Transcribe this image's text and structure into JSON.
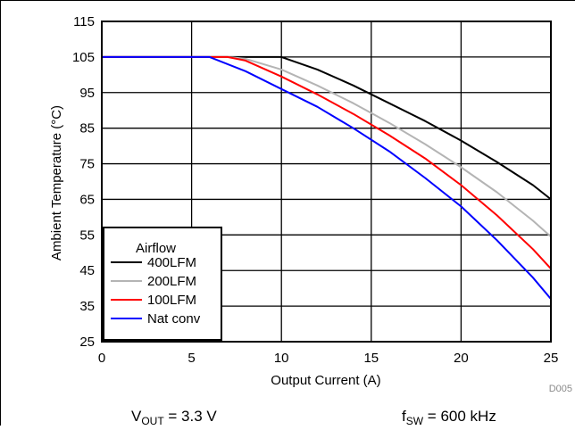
{
  "chart_data": {
    "type": "line",
    "title": "",
    "xlabel": "Output Current (A)",
    "ylabel": "Ambient Temperature (°C)",
    "xlim": [
      0,
      25
    ],
    "ylim": [
      25,
      115
    ],
    "xticks": [
      0,
      5,
      10,
      15,
      20,
      25
    ],
    "yticks": [
      25,
      35,
      45,
      55,
      65,
      75,
      85,
      95,
      105,
      115
    ],
    "grid": true,
    "legend": {
      "title": "Airflow",
      "placement": "bottom-left"
    },
    "series": [
      {
        "name": "400LFM",
        "color": "#000000",
        "x": [
          0,
          6,
          8,
          10,
          12,
          14,
          16,
          18,
          20,
          22,
          24,
          25
        ],
        "y": [
          105,
          105,
          105,
          105,
          101.5,
          97,
          92,
          87,
          81.5,
          75.5,
          69,
          65
        ]
      },
      {
        "name": "200LFM",
        "color": "#b4b4b4",
        "x": [
          0,
          6,
          7,
          8,
          10,
          12,
          14,
          16,
          18,
          20,
          22,
          24,
          25
        ],
        "y": [
          105,
          105,
          105,
          104.5,
          101.5,
          97,
          92,
          86.5,
          80.5,
          74,
          67,
          59,
          54.5
        ]
      },
      {
        "name": "100LFM",
        "color": "#ff0000",
        "x": [
          0,
          6,
          7,
          8,
          10,
          12,
          14,
          16,
          18,
          20,
          22,
          24,
          25
        ],
        "y": [
          105,
          105,
          105,
          104,
          99.5,
          94.5,
          89,
          83,
          76.5,
          69,
          60.5,
          51,
          45.5
        ]
      },
      {
        "name": "Nat conv",
        "color": "#0000ff",
        "x": [
          0,
          6,
          8,
          10,
          12,
          14,
          16,
          18,
          20,
          22,
          24,
          25
        ],
        "y": [
          105,
          105,
          101,
          96,
          91,
          85,
          78.5,
          71,
          63,
          53.5,
          43,
          37
        ]
      }
    ]
  },
  "captions": {
    "vout_symbol": "V",
    "vout_sub": "OUT",
    "vout_rest": " = 3.3 V",
    "fsw_symbol": "f",
    "fsw_sub": "SW",
    "fsw_rest": " = 600 kHz"
  },
  "watermark": "D005"
}
